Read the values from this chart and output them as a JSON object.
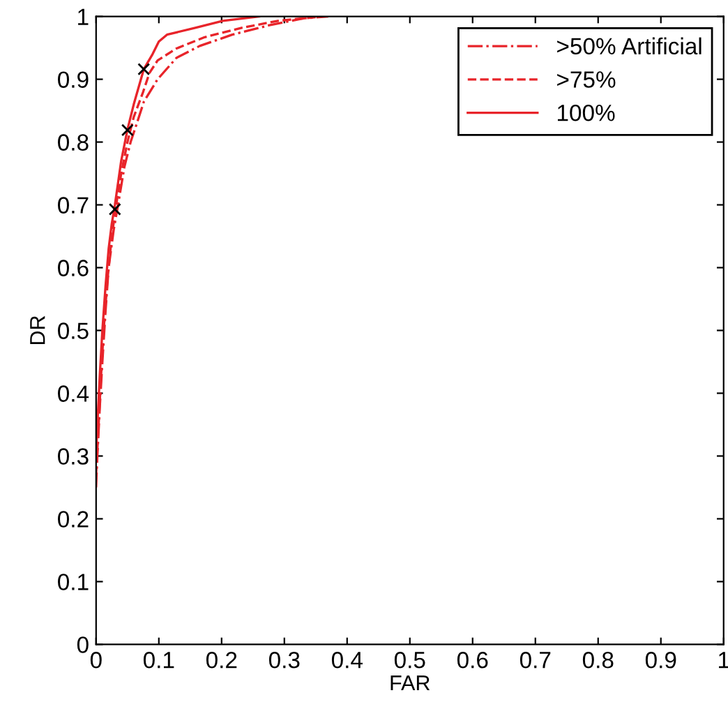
{
  "chart_data": {
    "type": "line",
    "xlabel": "FAR",
    "ylabel": "DR",
    "xlim": [
      0,
      1
    ],
    "ylim": [
      0,
      1
    ],
    "xticks": [
      0,
      0.1,
      0.2,
      0.3,
      0.4,
      0.5,
      0.6,
      0.7,
      0.8,
      0.9,
      1
    ],
    "yticks": [
      0,
      0.1,
      0.2,
      0.3,
      0.4,
      0.5,
      0.6,
      0.7,
      0.8,
      0.9,
      1
    ],
    "grid": false,
    "legend": "top right",
    "series": [
      {
        "name": ">50% Artificial",
        "color": "#e8242a",
        "line_style": "dashdot",
        "x": [
          0,
          0.002,
          0.006,
          0.01,
          0.015,
          0.02,
          0.028,
          0.035,
          0.045,
          0.055,
          0.065,
          0.076,
          0.098,
          0.128,
          0.165,
          0.217,
          0.276,
          0.33,
          0.37
        ],
        "values": [
          0.25,
          0.3,
          0.38,
          0.45,
          0.53,
          0.6,
          0.66,
          0.7,
          0.76,
          0.8,
          0.83,
          0.864,
          0.9,
          0.934,
          0.953,
          0.971,
          0.986,
          0.997,
          1
        ]
      },
      {
        "name": ">75%",
        "color": "#e8242a",
        "line_style": "dashed",
        "x": [
          0,
          0.003,
          0.008,
          0.012,
          0.018,
          0.025,
          0.032,
          0.04,
          0.05,
          0.06,
          0.075,
          0.085,
          0.098,
          0.128,
          0.173,
          0.232,
          0.29,
          0.36
        ],
        "values": [
          0.27,
          0.33,
          0.43,
          0.5,
          0.58,
          0.65,
          0.7,
          0.75,
          0.8,
          0.84,
          0.88,
          0.91,
          0.93,
          0.949,
          0.967,
          0.982,
          0.993,
          1
        ]
      },
      {
        "name": "100%",
        "color": "#e8242a",
        "line_style": "solid",
        "x": [
          0,
          0.002,
          0.006,
          0.01,
          0.015,
          0.02,
          0.025,
          0.03,
          0.04,
          0.05,
          0.06,
          0.076,
          0.09,
          0.1,
          0.113,
          0.158,
          0.202,
          0.26
        ],
        "values": [
          0.3,
          0.35,
          0.43,
          0.5,
          0.57,
          0.63,
          0.67,
          0.7,
          0.77,
          0.82,
          0.86,
          0.916,
          0.94,
          0.96,
          0.971,
          0.982,
          0.993,
          1
        ]
      },
      {
        "type": "scatter",
        "marker": "cross",
        "color": "#000000",
        "x": [
          0.03,
          0.05,
          0.076
        ],
        "values": [
          0.693,
          0.819,
          0.916
        ]
      }
    ]
  }
}
